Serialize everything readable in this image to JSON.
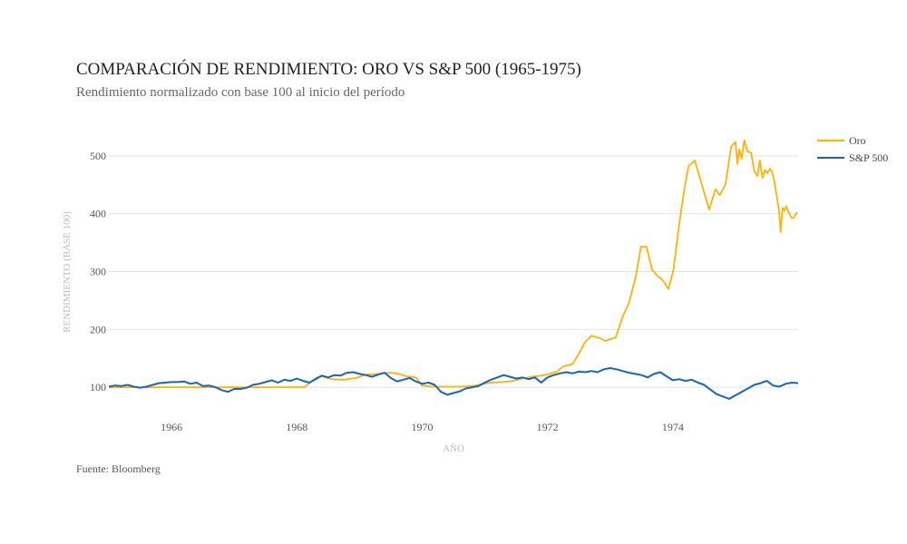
{
  "header": {
    "title": "COMPARACIÓN DE RENDIMIENTO: ORO VS S&P 500 (1965-1975)",
    "subtitle": "Rendimiento normalizado con base 100 al inicio del período"
  },
  "footer": {
    "source": "Fuente: Bloomberg"
  },
  "chart_data": {
    "type": "line",
    "title": "COMPARACIÓN DE RENDIMIENTO: ORO VS S&P 500 (1965-1975)",
    "subtitle": "Rendimiento normalizado con base 100 al inicio del período",
    "xlabel": "AÑO",
    "ylabel": "RENDIMIENTO (BASE 100)",
    "xlim": [
      1965.0,
      1976.0
    ],
    "ylim": [
      50,
      550
    ],
    "x_ticks": [
      1966,
      1968,
      1970,
      1972,
      1974
    ],
    "x_tick_labels": [
      "1966",
      "1968",
      "1970",
      "1972",
      "1974"
    ],
    "y_ticks": [
      100,
      200,
      300,
      400,
      500
    ],
    "y_tick_labels": [
      "100",
      "200",
      "300",
      "400",
      "500"
    ],
    "grid": true,
    "legend": "top-right",
    "source": "Fuente: Bloomberg",
    "series": [
      {
        "name": "Oro",
        "color": "#FFB300",
        "points": [
          [
            1965.0,
            100
          ],
          [
            1966.0,
            100
          ],
          [
            1967.0,
            100
          ],
          [
            1968.0,
            100
          ],
          [
            1968.12,
            100
          ],
          [
            1968.3,
            116
          ],
          [
            1968.4,
            119
          ],
          [
            1968.55,
            114
          ],
          [
            1968.75,
            113
          ],
          [
            1968.95,
            116
          ],
          [
            1969.1,
            122
          ],
          [
            1969.3,
            123
          ],
          [
            1969.45,
            125
          ],
          [
            1969.6,
            124
          ],
          [
            1969.75,
            119
          ],
          [
            1969.9,
            117
          ],
          [
            1970.0,
            103
          ],
          [
            1970.15,
            101
          ],
          [
            1970.4,
            101
          ],
          [
            1970.6,
            101
          ],
          [
            1970.8,
            102
          ],
          [
            1970.95,
            105
          ],
          [
            1971.1,
            108
          ],
          [
            1971.3,
            109
          ],
          [
            1971.45,
            111
          ],
          [
            1971.6,
            115
          ],
          [
            1971.75,
            118
          ],
          [
            1971.9,
            120
          ],
          [
            1972.0,
            122
          ],
          [
            1972.15,
            127
          ],
          [
            1972.25,
            136
          ],
          [
            1972.4,
            140
          ],
          [
            1972.5,
            158
          ],
          [
            1972.6,
            178
          ],
          [
            1972.7,
            189
          ],
          [
            1972.83,
            185
          ],
          [
            1972.92,
            180
          ],
          [
            1973.09,
            186
          ],
          [
            1973.2,
            222
          ],
          [
            1973.3,
            246
          ],
          [
            1973.41,
            292
          ],
          [
            1973.49,
            343
          ],
          [
            1973.58,
            343
          ],
          [
            1973.67,
            303
          ],
          [
            1973.76,
            292
          ],
          [
            1973.84,
            285
          ],
          [
            1973.93,
            270
          ],
          [
            1974.01,
            303
          ],
          [
            1974.1,
            380
          ],
          [
            1974.18,
            440
          ],
          [
            1974.25,
            482
          ],
          [
            1974.35,
            492
          ],
          [
            1974.45,
            455
          ],
          [
            1974.58,
            407
          ],
          [
            1974.68,
            442
          ],
          [
            1974.75,
            432
          ],
          [
            1974.84,
            451
          ],
          [
            1974.93,
            516
          ],
          [
            1975.0,
            524
          ],
          [
            1975.03,
            486
          ],
          [
            1975.06,
            511
          ],
          [
            1975.1,
            495
          ],
          [
            1975.14,
            527
          ],
          [
            1975.19,
            508
          ],
          [
            1975.25,
            505
          ],
          [
            1975.3,
            473
          ],
          [
            1975.35,
            465
          ],
          [
            1975.39,
            492
          ],
          [
            1975.43,
            462
          ],
          [
            1975.47,
            476
          ],
          [
            1975.51,
            470
          ],
          [
            1975.55,
            478
          ],
          [
            1975.58,
            473
          ],
          [
            1975.61,
            461
          ],
          [
            1975.67,
            423
          ],
          [
            1975.7,
            398
          ],
          [
            1975.72,
            368
          ],
          [
            1975.75,
            410
          ],
          [
            1975.78,
            405
          ],
          [
            1975.81,
            413
          ],
          [
            1975.84,
            404
          ],
          [
            1975.87,
            398
          ],
          [
            1975.9,
            392
          ],
          [
            1975.93,
            393
          ],
          [
            1975.96,
            399
          ],
          [
            1975.99,
            402
          ]
        ]
      },
      {
        "name": "S&P 500",
        "color": "#1565C0",
        "points": [
          [
            1965.0,
            101
          ],
          [
            1965.1,
            103
          ],
          [
            1965.2,
            102
          ],
          [
            1965.3,
            104
          ],
          [
            1965.4,
            101
          ],
          [
            1965.5,
            99
          ],
          [
            1965.6,
            101
          ],
          [
            1965.7,
            104
          ],
          [
            1965.8,
            107
          ],
          [
            1965.9,
            108
          ],
          [
            1966.0,
            109
          ],
          [
            1966.1,
            109
          ],
          [
            1966.2,
            110
          ],
          [
            1966.3,
            106
          ],
          [
            1966.4,
            108
          ],
          [
            1966.5,
            102
          ],
          [
            1966.6,
            103
          ],
          [
            1966.7,
            100
          ],
          [
            1966.8,
            95
          ],
          [
            1966.9,
            92
          ],
          [
            1967.0,
            97
          ],
          [
            1967.1,
            97
          ],
          [
            1967.2,
            99
          ],
          [
            1967.3,
            104
          ],
          [
            1967.4,
            106
          ],
          [
            1967.5,
            109
          ],
          [
            1967.6,
            112
          ],
          [
            1967.7,
            108
          ],
          [
            1967.8,
            113
          ],
          [
            1967.9,
            111
          ],
          [
            1968.0,
            115
          ],
          [
            1968.1,
            111
          ],
          [
            1968.2,
            108
          ],
          [
            1968.3,
            114
          ],
          [
            1968.4,
            120
          ],
          [
            1968.5,
            117
          ],
          [
            1968.6,
            121
          ],
          [
            1968.7,
            120
          ],
          [
            1968.8,
            125
          ],
          [
            1968.9,
            126
          ],
          [
            1969.0,
            123
          ],
          [
            1969.1,
            121
          ],
          [
            1969.2,
            118
          ],
          [
            1969.3,
            122
          ],
          [
            1969.4,
            125
          ],
          [
            1969.5,
            116
          ],
          [
            1969.6,
            110
          ],
          [
            1969.7,
            113
          ],
          [
            1969.8,
            116
          ],
          [
            1969.9,
            110
          ],
          [
            1970.0,
            106
          ],
          [
            1970.1,
            108
          ],
          [
            1970.2,
            104
          ],
          [
            1970.3,
            92
          ],
          [
            1970.4,
            87
          ],
          [
            1970.5,
            90
          ],
          [
            1970.6,
            93
          ],
          [
            1970.7,
            98
          ],
          [
            1970.8,
            100
          ],
          [
            1970.9,
            102
          ],
          [
            1971.0,
            108
          ],
          [
            1971.1,
            113
          ],
          [
            1971.2,
            117
          ],
          [
            1971.3,
            121
          ],
          [
            1971.4,
            118
          ],
          [
            1971.5,
            115
          ],
          [
            1971.6,
            117
          ],
          [
            1971.7,
            114
          ],
          [
            1971.8,
            117
          ],
          [
            1971.9,
            108
          ],
          [
            1972.0,
            117
          ],
          [
            1972.1,
            121
          ],
          [
            1972.2,
            124
          ],
          [
            1972.3,
            126
          ],
          [
            1972.4,
            124
          ],
          [
            1972.5,
            127
          ],
          [
            1972.6,
            126
          ],
          [
            1972.7,
            128
          ],
          [
            1972.8,
            126
          ],
          [
            1972.9,
            131
          ],
          [
            1973.0,
            133
          ],
          [
            1973.1,
            131
          ],
          [
            1973.2,
            128
          ],
          [
            1973.3,
            125
          ],
          [
            1973.4,
            123
          ],
          [
            1973.5,
            121
          ],
          [
            1973.6,
            117
          ],
          [
            1973.7,
            123
          ],
          [
            1973.8,
            126
          ],
          [
            1973.9,
            119
          ],
          [
            1974.0,
            112
          ],
          [
            1974.1,
            114
          ],
          [
            1974.2,
            111
          ],
          [
            1974.3,
            113
          ],
          [
            1974.4,
            108
          ],
          [
            1974.5,
            104
          ],
          [
            1974.6,
            96
          ],
          [
            1974.7,
            88
          ],
          [
            1974.8,
            84
          ],
          [
            1974.9,
            80
          ],
          [
            1975.0,
            86
          ],
          [
            1975.1,
            92
          ],
          [
            1975.2,
            98
          ],
          [
            1975.3,
            104
          ],
          [
            1975.4,
            107
          ],
          [
            1975.5,
            111
          ],
          [
            1975.6,
            103
          ],
          [
            1975.7,
            101
          ],
          [
            1975.8,
            106
          ],
          [
            1975.9,
            108
          ],
          [
            1976.0,
            107
          ]
        ]
      }
    ]
  }
}
